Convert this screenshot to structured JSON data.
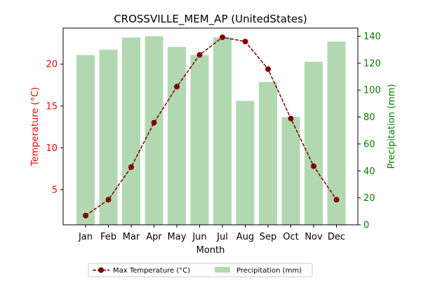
{
  "chart_data": {
    "type": "bar+line",
    "title": "CROSSVILLE_MEM_AP (UnitedStates)",
    "xlabel": "Month",
    "categories": [
      "Jan",
      "Feb",
      "Mar",
      "Apr",
      "May",
      "Jun",
      "Jul",
      "Aug",
      "Sep",
      "Oct",
      "Nov",
      "Dec"
    ],
    "series": [
      {
        "name": "Max Temperature (°C)",
        "type": "line",
        "axis": "left",
        "color": "#800000",
        "values": [
          1.9,
          3.8,
          7.7,
          13.0,
          17.3,
          21.1,
          23.2,
          22.7,
          19.4,
          13.5,
          7.8,
          3.8
        ]
      },
      {
        "name": "Precipitation (mm)",
        "type": "bar",
        "axis": "right",
        "color": "#b2d8b2",
        "values": [
          126,
          130,
          139,
          140,
          132,
          126,
          139,
          92,
          106,
          80,
          121,
          136
        ]
      }
    ],
    "y_left": {
      "label": "Temperature (°C)",
      "color": "#ff0000",
      "ylim": [
        0.8,
        24.3
      ],
      "ticks": [
        5,
        10,
        15,
        20
      ]
    },
    "y_right": {
      "label": "Precipitation (mm)",
      "color": "#008000",
      "ylim": [
        0,
        146
      ],
      "ticks": [
        0,
        20,
        40,
        60,
        80,
        100,
        120,
        140
      ]
    },
    "grid": false,
    "legend_position": "bottom-center"
  }
}
